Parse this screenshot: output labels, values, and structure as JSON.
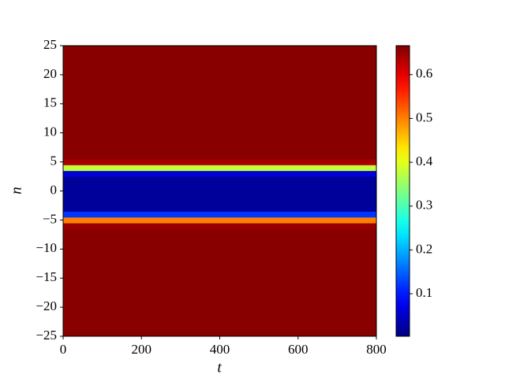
{
  "chart_data": {
    "type": "heatmap",
    "colormap": "jet",
    "x_label": "t",
    "y_label": "n",
    "xlim": [
      0,
      800
    ],
    "ylim": [
      -25,
      25
    ],
    "xticks": [
      0,
      200,
      400,
      600,
      800
    ],
    "yticks": [
      {
        "value": -25,
        "label": "−25"
      },
      {
        "value": -20,
        "label": "−20"
      },
      {
        "value": -15,
        "label": "−15"
      },
      {
        "value": -10,
        "label": "−10"
      },
      {
        "value": -5,
        "label": "−5"
      },
      0,
      5,
      10,
      15,
      20,
      25
    ],
    "y": [
      -25,
      -24,
      -23,
      -22,
      -21,
      -20,
      -19,
      -18,
      -17,
      -16,
      -15,
      -14,
      -13,
      -12,
      -11,
      -10,
      -9,
      -8,
      -7,
      -6,
      -5,
      -4,
      -3,
      -2,
      -1,
      0,
      1,
      2,
      3,
      4,
      5,
      6,
      7,
      8,
      9,
      10,
      11,
      12,
      13,
      14,
      15,
      16,
      17,
      18,
      19,
      20,
      21,
      22,
      23,
      24,
      25
    ],
    "values": [
      0.66,
      0.66,
      0.66,
      0.66,
      0.66,
      0.66,
      0.66,
      0.66,
      0.66,
      0.66,
      0.66,
      0.66,
      0.66,
      0.66,
      0.66,
      0.66,
      0.66,
      0.66,
      0.66,
      0.65,
      0.5,
      0.12,
      0.02,
      0.02,
      0.02,
      0.02,
      0.02,
      0.02,
      0.06,
      0.38,
      0.64,
      0.66,
      0.66,
      0.66,
      0.66,
      0.66,
      0.66,
      0.66,
      0.66,
      0.66,
      0.66,
      0.66,
      0.66,
      0.66,
      0.66,
      0.66,
      0.66,
      0.66,
      0.66,
      0.66,
      0.66
    ],
    "clim": [
      0.003,
      0.666
    ],
    "cticks": [
      0.1,
      0.2,
      0.3,
      0.4,
      0.5,
      0.6
    ]
  }
}
